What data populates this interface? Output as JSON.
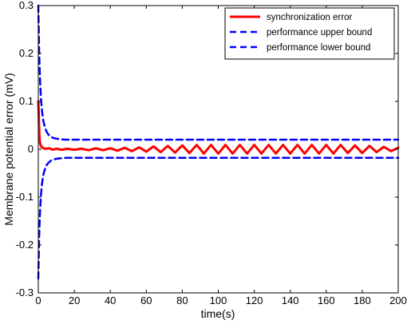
{
  "chart_data": {
    "type": "line",
    "xlabel": "time(s)",
    "ylabel": "Membrane potential error (mV)",
    "xlim": [
      0,
      200
    ],
    "ylim": [
      -0.3,
      0.3
    ],
    "xticks": [
      0,
      20,
      40,
      60,
      80,
      100,
      120,
      140,
      160,
      180,
      200
    ],
    "yticks": [
      -0.3,
      -0.2,
      -0.1,
      0,
      0.1,
      0.2,
      0.3
    ],
    "xtick_labels": [
      "0",
      "20",
      "40",
      "60",
      "80",
      "100",
      "120",
      "140",
      "160",
      "180",
      "200"
    ],
    "ytick_labels": [
      "-0.3",
      "-0.2",
      "-0.1",
      "0",
      "0.1",
      "0.2",
      "0.3"
    ],
    "grid": false,
    "legend_position": "top-right",
    "series": [
      {
        "name": "synchronization error",
        "color": "#ff0000",
        "style": "solid",
        "x": [
          0,
          0.2,
          0.4,
          0.6,
          0.8,
          1,
          1.5,
          2,
          3,
          4,
          6,
          8,
          10,
          13,
          16,
          20,
          24,
          28,
          32,
          36,
          40,
          44,
          48,
          52,
          56,
          60,
          64,
          68,
          72,
          76,
          80,
          84,
          88,
          92,
          96,
          100,
          104,
          108,
          112,
          116,
          120,
          124,
          128,
          132,
          136,
          140,
          144,
          148,
          152,
          156,
          160,
          164,
          168,
          172,
          176,
          180,
          184,
          188,
          192,
          196,
          200
        ],
        "values": [
          0.1,
          0.08,
          0.05,
          0.03,
          0.018,
          0.012,
          0.007,
          0.004,
          0.002,
          0.001,
          0.002,
          -0.001,
          0.001,
          -0.001,
          0.001,
          -0.001,
          0.001,
          -0.002,
          0.002,
          -0.002,
          0.002,
          -0.003,
          0.003,
          -0.004,
          0.004,
          -0.005,
          0.006,
          -0.006,
          0.007,
          -0.007,
          0.008,
          -0.008,
          0.009,
          -0.009,
          0.009,
          -0.009,
          0.009,
          -0.009,
          0.009,
          -0.009,
          0.009,
          -0.009,
          0.009,
          -0.009,
          0.009,
          -0.009,
          0.009,
          -0.009,
          0.009,
          -0.009,
          0.009,
          -0.009,
          0.009,
          -0.008,
          0.008,
          -0.008,
          0.007,
          -0.006,
          0.005,
          -0.004,
          0.003
        ]
      },
      {
        "name": "performance upper bound",
        "color": "#0000ff",
        "style": "dashed",
        "x": [
          0,
          0.5,
          1,
          1.5,
          2,
          2.5,
          3,
          4,
          5,
          6,
          7,
          8,
          9,
          10,
          12,
          15,
          20,
          30,
          50,
          100,
          150,
          200
        ],
        "values": [
          0.3,
          0.2,
          0.14,
          0.105,
          0.082,
          0.066,
          0.055,
          0.042,
          0.034,
          0.029,
          0.026,
          0.024,
          0.023,
          0.022,
          0.021,
          0.02,
          0.02,
          0.02,
          0.02,
          0.02,
          0.02,
          0.02
        ]
      },
      {
        "name": "performance lower bound",
        "color": "#0000ff",
        "style": "dashed",
        "x": [
          0,
          0.5,
          1,
          1.5,
          2,
          2.5,
          3,
          4,
          5,
          6,
          7,
          8,
          9,
          10,
          12,
          15,
          20,
          30,
          50,
          100,
          150,
          200
        ],
        "values": [
          -0.27,
          -0.18,
          -0.126,
          -0.095,
          -0.074,
          -0.06,
          -0.05,
          -0.038,
          -0.031,
          -0.027,
          -0.024,
          -0.022,
          -0.021,
          -0.02,
          -0.019,
          -0.018,
          -0.018,
          -0.018,
          -0.018,
          -0.018,
          -0.018,
          -0.018
        ]
      }
    ]
  }
}
